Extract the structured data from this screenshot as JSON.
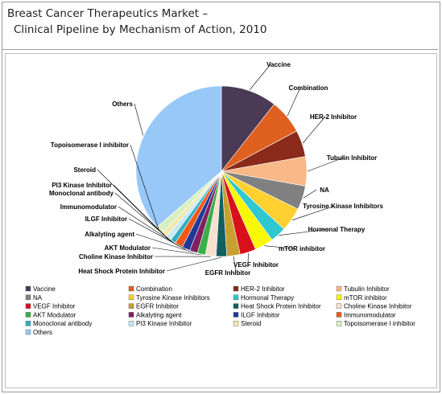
{
  "header": {
    "title_line1": "Breast Cancer Therapeutics Market –",
    "title_line2": "Clinical Pipeline by Mechanism of Action, 2010"
  },
  "chart_data": {
    "type": "pie",
    "title": "Breast Cancer Therapeutics Market – Clinical Pipeline by Mechanism of Action, 2010",
    "legend_position": "bottom",
    "start": "top, clockwise",
    "slices": [
      {
        "label": "Vaccine",
        "value": 10.5,
        "color": "#4a3a55"
      },
      {
        "label": "Combination",
        "value": 6.5,
        "color": "#e06020"
      },
      {
        "label": "HER-2 Inhibitor",
        "value": 5.0,
        "color": "#8a2a1a"
      },
      {
        "label": "Tubulin Inhibitor",
        "value": 5.5,
        "color": "#f8b888"
      },
      {
        "label": "NA",
        "value": 4.5,
        "color": "#808080"
      },
      {
        "label": "Tyrosine Kinase Inhibitors",
        "value": 4.5,
        "color": "#ffd030"
      },
      {
        "label": "Hormonal Therapy",
        "value": 3.0,
        "color": "#30c8d0"
      },
      {
        "label": "mTOR inhibitor",
        "value": 3.5,
        "color": "#f8f800"
      },
      {
        "label": "VEGF Inhibitor",
        "value": 3.0,
        "color": "#d8101a"
      },
      {
        "label": "EGFR Inhibitor",
        "value": 2.5,
        "color": "#c8a030"
      },
      {
        "label": "Heat Shock Protein Inhibitor",
        "value": 2.0,
        "color": "#106060"
      },
      {
        "label": "Choline Kinase Inhibitor",
        "value": 2.0,
        "color": "#f8e0d0"
      },
      {
        "label": "AKT Modulator",
        "value": 1.5,
        "color": "#38b048"
      },
      {
        "label": "Alkalyting agent",
        "value": 1.5,
        "color": "#802060"
      },
      {
        "label": "ILGF Inhibitor",
        "value": 1.5,
        "color": "#203898"
      },
      {
        "label": "Immunomodulator",
        "value": 1.5,
        "color": "#f05818"
      },
      {
        "label": "Monoclonal antibody",
        "value": 1.0,
        "color": "#30b0c0"
      },
      {
        "label": "PI3 Kinase Inhibitor",
        "value": 1.0,
        "color": "#c8e8f8"
      },
      {
        "label": "Steroid",
        "value": 1.0,
        "color": "#f0e8b0"
      },
      {
        "label": "Topoisomerase I inhibitor",
        "value": 1.5,
        "color": "#d8f0c0"
      },
      {
        "label": "Others",
        "value": 36.0,
        "color": "#98c8f8"
      }
    ]
  }
}
